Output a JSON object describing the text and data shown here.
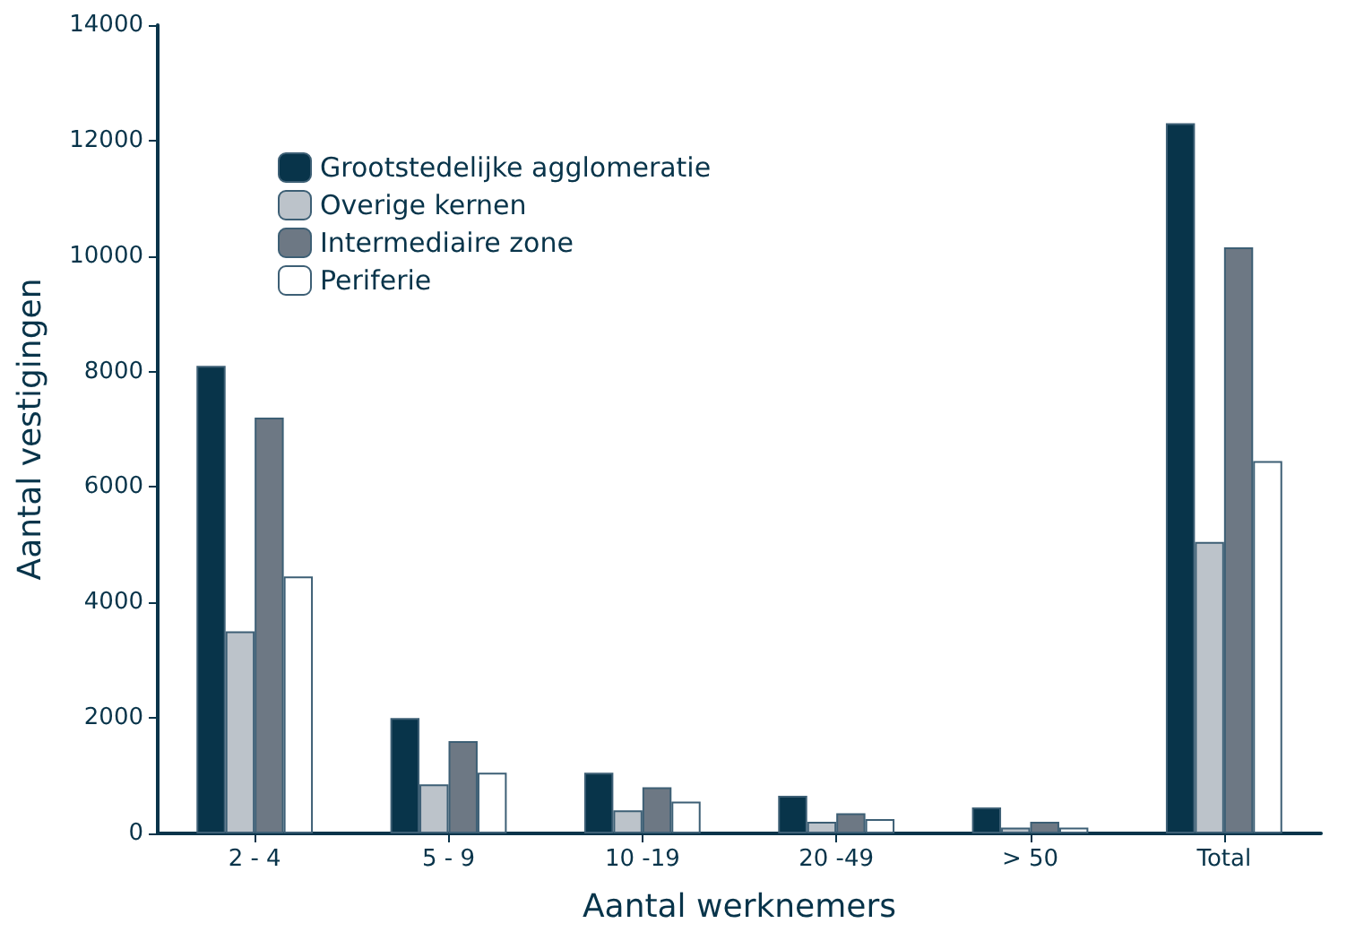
{
  "chart_data": {
    "type": "bar",
    "xlabel": "Aantal werknemers",
    "ylabel": "Aantal vestigingen",
    "categories": [
      "2 - 4",
      "5 - 9",
      "10 -19",
      "20 -49",
      "> 50",
      "Total"
    ],
    "series": [
      {
        "name": "Grootstedelijke agglomeratie",
        "color": "#08344a",
        "values": [
          8100,
          2000,
          1050,
          650,
          450,
          12300
        ]
      },
      {
        "name": "Overige kernen",
        "color": "#bcc3ca",
        "values": [
          3500,
          850,
          400,
          200,
          100,
          5050
        ]
      },
      {
        "name": "Intermediaire zone",
        "color": "#6d7884",
        "values": [
          7200,
          1600,
          800,
          350,
          200,
          10150
        ]
      },
      {
        "name": "Periferie",
        "color": "#ffffff",
        "values": [
          4450,
          1050,
          550,
          250,
          100,
          6450
        ]
      }
    ],
    "ylim": [
      0,
      14000
    ],
    "yticks": [
      0,
      2000,
      4000,
      6000,
      8000,
      10000,
      12000,
      14000
    ],
    "grid": false,
    "legend": "top left"
  }
}
